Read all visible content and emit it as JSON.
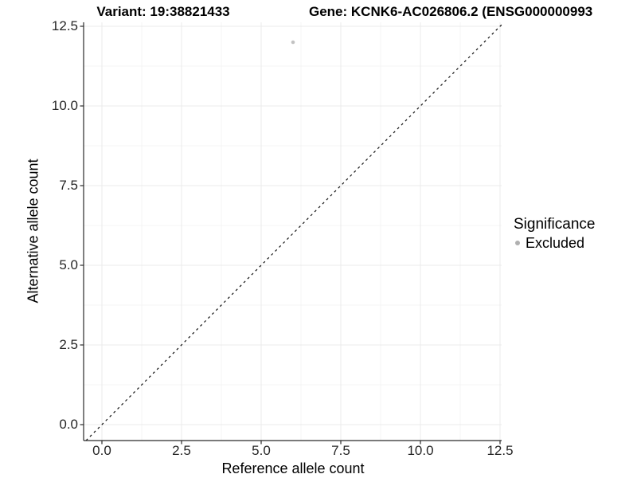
{
  "chart_data": {
    "type": "scatter",
    "titles": {
      "variant": "Variant: 19:38821433",
      "gene": "Gene: KCNK6-AC026806.2 (ENSG000000993"
    },
    "xlabel": "Reference allele count",
    "ylabel": "Alternative allele count",
    "x_ticks": [
      0.0,
      2.5,
      5.0,
      7.5,
      10.0,
      12.5
    ],
    "y_ticks": [
      0.0,
      2.5,
      5.0,
      7.5,
      10.0,
      12.5
    ],
    "x_tick_labels": [
      "0.0",
      "2.5",
      "5.0",
      "7.5",
      "10.0",
      "12.5"
    ],
    "y_tick_labels": [
      "0.0",
      "2.5",
      "5.0",
      "7.5",
      "10.0",
      "12.5"
    ],
    "xlim": [
      -0.6,
      12.55
    ],
    "ylim": [
      -0.5,
      12.6
    ],
    "grid": "major+minor",
    "points": [
      {
        "x": 6,
        "y": 12,
        "significance": "Excluded"
      }
    ],
    "point_color": "#c2c2c2",
    "identity_line": {
      "slope": 1,
      "intercept": 0,
      "style": "dashed",
      "color": "#111111"
    },
    "legend": {
      "title": "Significance",
      "position": "right",
      "items": [
        {
          "label": "Excluded",
          "color": "#b0b0b0"
        }
      ]
    },
    "colors": {
      "axis": "#2b2b2b",
      "grid_major": "#ebebeb",
      "grid_minor": "#f4f4f4",
      "background": "#ffffff"
    }
  }
}
